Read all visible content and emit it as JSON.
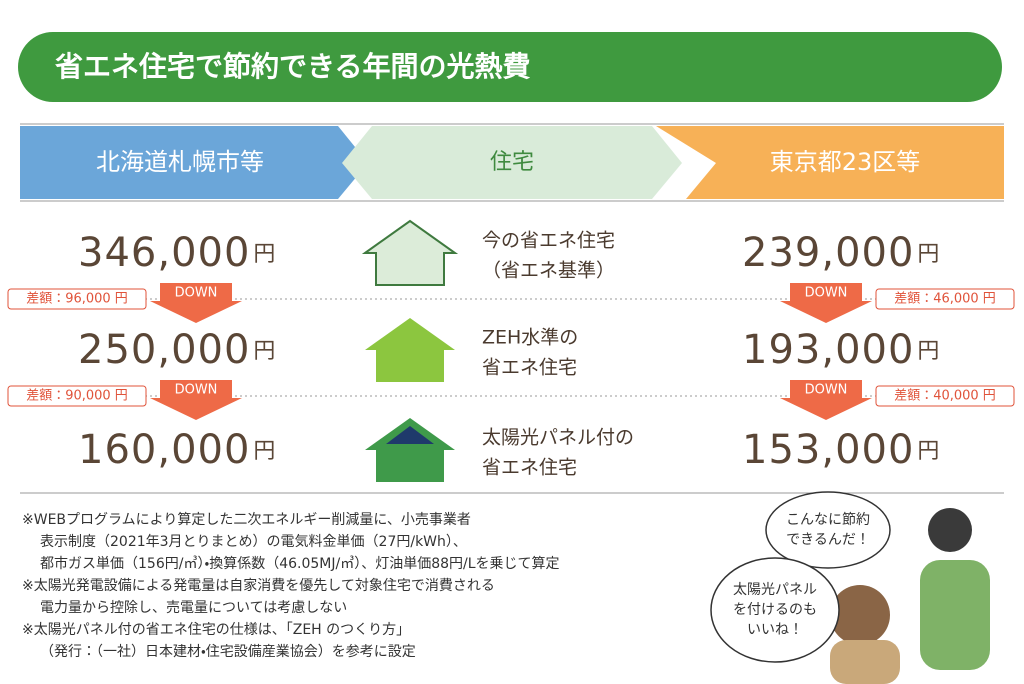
{
  "title": "省エネ住宅で節約できる年間の光熱費",
  "header": {
    "left": "北海道札幌市等",
    "center": "住宅",
    "right": "東京都23区等"
  },
  "unit": "円",
  "down_label": "DOWN",
  "rows": [
    {
      "house": [
        "今の省エネ住宅",
        "（省エネ基準）"
      ],
      "left": "346,000",
      "right": "239,000"
    },
    {
      "house": [
        "ZEH水準の",
        "省エネ住宅"
      ],
      "left": "250,000",
      "right": "193,000"
    },
    {
      "house": [
        "太陽光パネル付の",
        "省エネ住宅"
      ],
      "left": "160,000",
      "right": "153,000"
    }
  ],
  "differences": [
    {
      "left": "差額：96,000 円",
      "right": "差額：46,000 円"
    },
    {
      "left": "差額：90,000 円",
      "right": "差額：40,000 円"
    }
  ],
  "notes": [
    [
      "※WEBプログラムにより算定した二次エネルギー削減量に、小売事業者",
      "表示制度（2021年3月とりまとめ）の電気料金単価（27円/kWh）、",
      "都市ガス単価（156円/㎥）・換算係数（46.05MJ/㎥）、灯油単価88円/Lを乗じて算定"
    ],
    [
      "※太陽光発電設備による発電量は自家消費を優先して対象住宅で消費される",
      "電力量から控除し、売電量については考慮しない"
    ],
    [
      "※太陽光パネル付の省エネ住宅の仕様は、「ZEH のつくり方」",
      "（発行：（一社）日本建材・住宅設備産業協会）を参考に設定"
    ]
  ],
  "speech_bubbles": [
    [
      "こんなに節約",
      "できるんだ！"
    ],
    [
      "太陽光パネル",
      "を付けるのも",
      "いいね！"
    ]
  ]
}
